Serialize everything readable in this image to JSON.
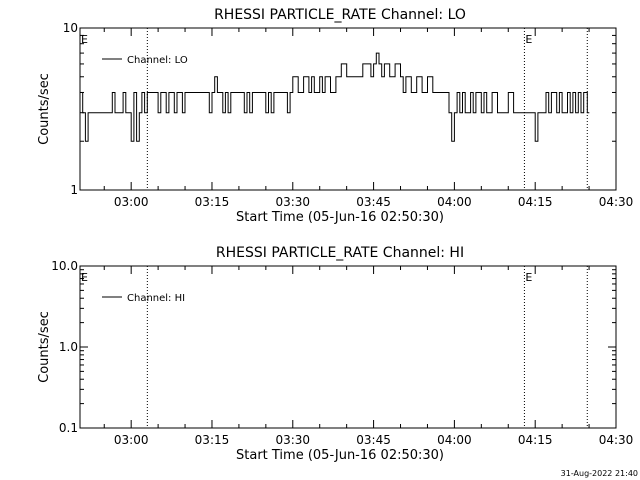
{
  "footer": {
    "timestamp": "31-Aug-2022 21:40"
  },
  "chart_data": [
    {
      "type": "line",
      "title": "RHESSI PARTICLE_RATE Channel: LO",
      "xlabel": "Start Time (05-Jun-16 02:50:30)",
      "ylabel": "Counts/sec",
      "yscale": "log",
      "xlim": [
        "02:50:30",
        "04:30:00"
      ],
      "ylim": [
        1,
        10
      ],
      "x_ticks": [
        "03:00",
        "03:15",
        "03:30",
        "03:45",
        "04:00",
        "04:15",
        "04:30"
      ],
      "y_ticks": [
        "1",
        "10"
      ],
      "event_markers": {
        "label": "E",
        "times": [
          "03:03:00",
          "04:13:00",
          "04:24:40"
        ]
      },
      "legend": {
        "position": "top-left",
        "entries": [
          "Channel: LO"
        ]
      },
      "series": [
        {
          "name": "Channel: LO",
          "points": [
            [
              "02:50:30",
              4
            ],
            [
              "02:51:00",
              3
            ],
            [
              "02:51:30",
              2
            ],
            [
              "02:52:00",
              3
            ],
            [
              "02:54:00",
              3
            ],
            [
              "02:56:00",
              3
            ],
            [
              "02:56:30",
              4
            ],
            [
              "02:57:00",
              3
            ],
            [
              "02:58:00",
              3
            ],
            [
              "02:58:30",
              4
            ],
            [
              "02:59:00",
              3
            ],
            [
              "02:59:30",
              3
            ],
            [
              "03:00:00",
              2
            ],
            [
              "03:00:30",
              4
            ],
            [
              "03:01:00",
              2
            ],
            [
              "03:01:30",
              3
            ],
            [
              "03:02:00",
              4
            ],
            [
              "03:02:30",
              3
            ],
            [
              "03:03:00",
              4
            ],
            [
              "03:04:00",
              4
            ],
            [
              "03:05:00",
              3
            ],
            [
              "03:05:30",
              4
            ],
            [
              "03:06:30",
              3
            ],
            [
              "03:07:00",
              4
            ],
            [
              "03:08:00",
              3
            ],
            [
              "03:08:30",
              4
            ],
            [
              "03:09:30",
              3
            ],
            [
              "03:10:00",
              4
            ],
            [
              "03:12:00",
              4
            ],
            [
              "03:13:00",
              4
            ],
            [
              "03:14:00",
              4
            ],
            [
              "03:14:30",
              3
            ],
            [
              "03:15:00",
              4
            ],
            [
              "03:15:30",
              5
            ],
            [
              "03:16:00",
              4
            ],
            [
              "03:17:00",
              3
            ],
            [
              "03:17:30",
              4
            ],
            [
              "03:18:00",
              3
            ],
            [
              "03:18:30",
              4
            ],
            [
              "03:20:00",
              4
            ],
            [
              "03:21:00",
              3
            ],
            [
              "03:21:30",
              4
            ],
            [
              "03:22:00",
              3
            ],
            [
              "03:22:30",
              4
            ],
            [
              "03:24:00",
              4
            ],
            [
              "03:25:00",
              3
            ],
            [
              "03:25:30",
              4
            ],
            [
              "03:26:00",
              3
            ],
            [
              "03:26:30",
              4
            ],
            [
              "03:28:00",
              4
            ],
            [
              "03:29:00",
              3
            ],
            [
              "03:29:30",
              4
            ],
            [
              "03:30:00",
              5
            ],
            [
              "03:31:00",
              4
            ],
            [
              "03:32:00",
              5
            ],
            [
              "03:33:00",
              4
            ],
            [
              "03:33:30",
              5
            ],
            [
              "03:34:00",
              4
            ],
            [
              "03:35:00",
              5
            ],
            [
              "03:35:30",
              4
            ],
            [
              "03:36:00",
              5
            ],
            [
              "03:37:00",
              4
            ],
            [
              "03:38:00",
              5
            ],
            [
              "03:39:00",
              6
            ],
            [
              "03:40:00",
              5
            ],
            [
              "03:41:00",
              5
            ],
            [
              "03:42:00",
              5
            ],
            [
              "03:43:00",
              6
            ],
            [
              "03:44:00",
              6
            ],
            [
              "03:44:30",
              5
            ],
            [
              "03:45:00",
              6
            ],
            [
              "03:45:30",
              7
            ],
            [
              "03:46:00",
              6
            ],
            [
              "03:46:30",
              5
            ],
            [
              "03:47:00",
              6
            ],
            [
              "03:48:00",
              5
            ],
            [
              "03:49:00",
              6
            ],
            [
              "03:50:00",
              5
            ],
            [
              "03:50:30",
              4
            ],
            [
              "03:51:00",
              5
            ],
            [
              "03:52:00",
              4
            ],
            [
              "03:53:00",
              5
            ],
            [
              "03:54:00",
              4
            ],
            [
              "03:55:00",
              5
            ],
            [
              "03:56:00",
              4
            ],
            [
              "03:58:00",
              4
            ],
            [
              "03:59:00",
              3
            ],
            [
              "03:59:30",
              2
            ],
            [
              "04:00:00",
              3
            ],
            [
              "04:00:30",
              4
            ],
            [
              "04:01:00",
              3
            ],
            [
              "04:01:30",
              4
            ],
            [
              "04:02:00",
              3
            ],
            [
              "04:03:00",
              4
            ],
            [
              "04:03:30",
              3
            ],
            [
              "04:04:00",
              4
            ],
            [
              "04:05:00",
              3
            ],
            [
              "04:05:30",
              4
            ],
            [
              "04:06:00",
              3
            ],
            [
              "04:07:00",
              4
            ],
            [
              "04:08:00",
              3
            ],
            [
              "04:09:00",
              3
            ],
            [
              "04:10:00",
              4
            ],
            [
              "04:11:00",
              3
            ],
            [
              "04:12:00",
              3
            ],
            [
              "04:13:00",
              3
            ],
            [
              "04:14:00",
              3
            ],
            [
              "04:15:00",
              2
            ],
            [
              "04:15:30",
              3
            ],
            [
              "04:16:00",
              3
            ],
            [
              "04:17:00",
              4
            ],
            [
              "04:17:30",
              3
            ],
            [
              "04:18:00",
              4
            ],
            [
              "04:19:00",
              3
            ],
            [
              "04:19:30",
              4
            ],
            [
              "04:20:00",
              3
            ],
            [
              "04:21:00",
              4
            ],
            [
              "04:21:30",
              3
            ],
            [
              "04:22:00",
              4
            ],
            [
              "04:22:30",
              3
            ],
            [
              "04:23:00",
              4
            ],
            [
              "04:23:30",
              3
            ],
            [
              "04:24:00",
              4
            ],
            [
              "04:24:40",
              3
            ]
          ]
        }
      ]
    },
    {
      "type": "line",
      "title": "RHESSI PARTICLE_RATE Channel: HI",
      "xlabel": "Start Time (05-Jun-16 02:50:30)",
      "ylabel": "Counts/sec",
      "yscale": "log",
      "xlim": [
        "02:50:30",
        "04:30:00"
      ],
      "ylim": [
        0.1,
        10
      ],
      "x_ticks": [
        "03:00",
        "03:15",
        "03:30",
        "03:45",
        "04:00",
        "04:15",
        "04:30"
      ],
      "y_ticks": [
        "0.1",
        "1.0",
        "10.0"
      ],
      "event_markers": {
        "label": "E",
        "times": [
          "03:03:00",
          "04:13:00",
          "04:24:40"
        ]
      },
      "legend": {
        "position": "top-left",
        "entries": [
          "Channel: HI"
        ]
      },
      "series": [
        {
          "name": "Channel: HI",
          "points": []
        }
      ]
    }
  ]
}
